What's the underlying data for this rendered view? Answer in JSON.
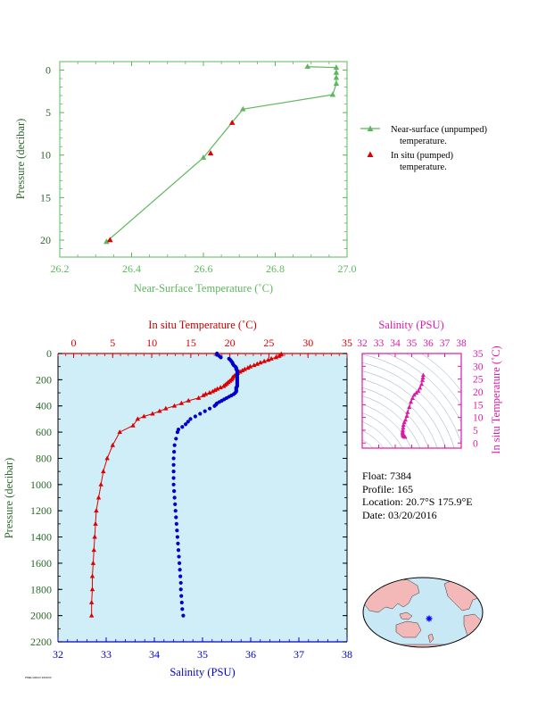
{
  "float_info": {
    "float_line": "Float:  7384",
    "profile_line": "Profile:  165",
    "location_line": "Location:  20.7°S  175.9°E",
    "date_line": "Date:  03/20/2016"
  },
  "footer_text": "PMEL/ARGO 2016/03",
  "colors": {
    "green": "#5cb85c",
    "red": "#dd0000",
    "blue": "#0000cc",
    "magenta": "#dd1aa6",
    "plot_bg": "#d0eef8",
    "land": "#f3b8b8",
    "ocean": "#c8e8f6"
  },
  "chart_data": [
    {
      "type": "line",
      "title": "",
      "xlabel": "Near-Surface Temperature (˚C)",
      "ylabel": "Pressure (decibar)",
      "xlim": [
        26.2,
        27.0
      ],
      "ylim": [
        22,
        -1
      ],
      "xticks": [
        "26.2",
        "26.4",
        "26.6",
        "26.8",
        "27.0"
      ],
      "yticks": [
        "0",
        "5",
        "10",
        "15",
        "20"
      ],
      "legend": "right",
      "series": [
        {
          "name": "Near-surface (unpumped) temperature.",
          "marker": "triangle",
          "x": [
            26.89,
            26.97,
            26.97,
            26.97,
            26.97,
            26.96,
            26.71,
            26.6,
            26.33
          ],
          "y": [
            -0.4,
            -0.3,
            0.3,
            0.9,
            1.6,
            2.9,
            4.6,
            10.3,
            20.2
          ]
        },
        {
          "name": "In situ (pumped) temperature.",
          "marker": "triangle",
          "x": [
            26.68,
            26.62,
            26.34
          ],
          "y": [
            6.2,
            9.8,
            20.0
          ]
        }
      ]
    },
    {
      "type": "scatter",
      "title": "",
      "xlabel_top": "In situ Temperature (˚C)",
      "xlabel_bottom": "Salinity (PSU)",
      "ylabel": "Pressure (decibar)",
      "temp_ticks": [
        "0",
        "5",
        "10",
        "15",
        "20",
        "25",
        "30",
        "35"
      ],
      "sal_ticks": [
        "32",
        "33",
        "34",
        "35",
        "36",
        "37",
        "38"
      ],
      "p_ticks": [
        "0",
        "200",
        "400",
        "600",
        "800",
        "1000",
        "1200",
        "1400",
        "1600",
        "1800",
        "2000",
        "2200"
      ],
      "temp_lim": [
        -2,
        35
      ],
      "sal_lim": [
        32,
        38
      ],
      "p_lim": [
        0,
        2200
      ],
      "temperature": {
        "p": [
          5,
          10,
          20,
          30,
          40,
          50,
          60,
          70,
          80,
          90,
          100,
          110,
          120,
          130,
          140,
          150,
          160,
          170,
          180,
          190,
          200,
          210,
          220,
          230,
          240,
          250,
          260,
          270,
          280,
          290,
          300,
          310,
          320,
          340,
          360,
          380,
          400,
          420,
          440,
          460,
          480,
          500,
          550,
          600,
          700,
          800,
          900,
          1000,
          1100,
          1200,
          1300,
          1400,
          1500,
          1600,
          1700,
          1800,
          1900,
          2000
        ],
        "temp": [
          26.6,
          26.5,
          26.3,
          25.9,
          25.3,
          24.9,
          24.4,
          23.9,
          23.5,
          23.1,
          22.6,
          22.3,
          21.9,
          21.6,
          21.3,
          21.0,
          20.8,
          20.6,
          20.4,
          20.3,
          20.2,
          20.0,
          19.8,
          19.6,
          19.4,
          19.2,
          18.8,
          18.4,
          18.1,
          17.8,
          17.4,
          16.9,
          16.6,
          16.0,
          14.7,
          13.8,
          12.9,
          11.8,
          11.0,
          10.1,
          9.0,
          8.2,
          7.6,
          5.9,
          5.0,
          4.3,
          3.8,
          3.5,
          3.2,
          2.9,
          2.8,
          2.7,
          2.6,
          2.5,
          2.4,
          2.4,
          2.3,
          2.3
        ]
      },
      "salinity": {
        "p": [
          0,
          10,
          20,
          30,
          40,
          50,
          60,
          70,
          80,
          90,
          100,
          110,
          120,
          130,
          140,
          150,
          160,
          170,
          180,
          190,
          200,
          210,
          220,
          230,
          240,
          250,
          260,
          270,
          280,
          290,
          300,
          310,
          320,
          330,
          340,
          350,
          360,
          370,
          380,
          390,
          400,
          420,
          440,
          460,
          480,
          500,
          520,
          540,
          560,
          580,
          600,
          650,
          700,
          750,
          800,
          850,
          900,
          950,
          1000,
          1050,
          1100,
          1150,
          1200,
          1250,
          1300,
          1350,
          1400,
          1450,
          1500,
          1550,
          1600,
          1650,
          1700,
          1750,
          1800,
          1850,
          1900,
          1950,
          2000
        ],
        "sal": [
          35.3,
          35.3,
          35.35,
          35.38,
          35.55,
          35.58,
          35.6,
          35.62,
          35.63,
          35.65,
          35.68,
          35.7,
          35.7,
          35.72,
          35.72,
          35.72,
          35.72,
          35.72,
          35.72,
          35.72,
          35.72,
          35.72,
          35.72,
          35.72,
          35.72,
          35.72,
          35.7,
          35.7,
          35.7,
          35.7,
          35.68,
          35.65,
          35.6,
          35.55,
          35.5,
          35.45,
          35.4,
          35.35,
          35.3,
          35.28,
          35.25,
          35.15,
          35.05,
          34.95,
          34.85,
          34.75,
          34.7,
          34.65,
          34.58,
          34.5,
          34.48,
          34.45,
          34.42,
          34.41,
          34.4,
          34.4,
          34.4,
          34.4,
          34.4,
          34.41,
          34.42,
          34.43,
          34.44,
          34.45,
          34.46,
          34.47,
          34.48,
          34.49,
          34.5,
          34.51,
          34.52,
          34.53,
          34.54,
          34.55,
          34.55,
          34.56,
          34.57,
          34.58,
          34.6
        ]
      }
    },
    {
      "type": "scatter",
      "title": "",
      "xlabel": "Salinity (PSU)",
      "ylabel": "In situ Temperature (˚C)",
      "xticks": [
        "32",
        "33",
        "34",
        "35",
        "36",
        "37",
        "38"
      ],
      "yticks": [
        "0",
        "5",
        "10",
        "15",
        "20",
        "25",
        "30",
        "35"
      ],
      "xlim": [
        32,
        38
      ],
      "ylim": [
        -2,
        35
      ],
      "ts_points": {
        "sal": [
          35.7,
          35.68,
          35.65,
          35.6,
          35.5,
          35.4,
          35.28,
          35.15,
          35.05,
          34.95,
          34.85,
          34.75,
          34.7,
          34.62,
          34.55,
          34.5,
          34.48,
          34.46,
          34.45,
          34.45,
          34.46,
          34.48,
          34.5,
          34.52,
          34.55,
          34.58,
          34.6
        ],
        "temp": [
          26.5,
          25.5,
          24.5,
          23.0,
          21.5,
          20.3,
          19.6,
          18.8,
          17.5,
          16.0,
          14.0,
          12.0,
          10.5,
          9.0,
          8.0,
          7.0,
          6.0,
          5.0,
          4.3,
          3.8,
          3.3,
          3.0,
          2.8,
          2.6,
          2.5,
          2.4,
          2.3
        ]
      }
    }
  ]
}
